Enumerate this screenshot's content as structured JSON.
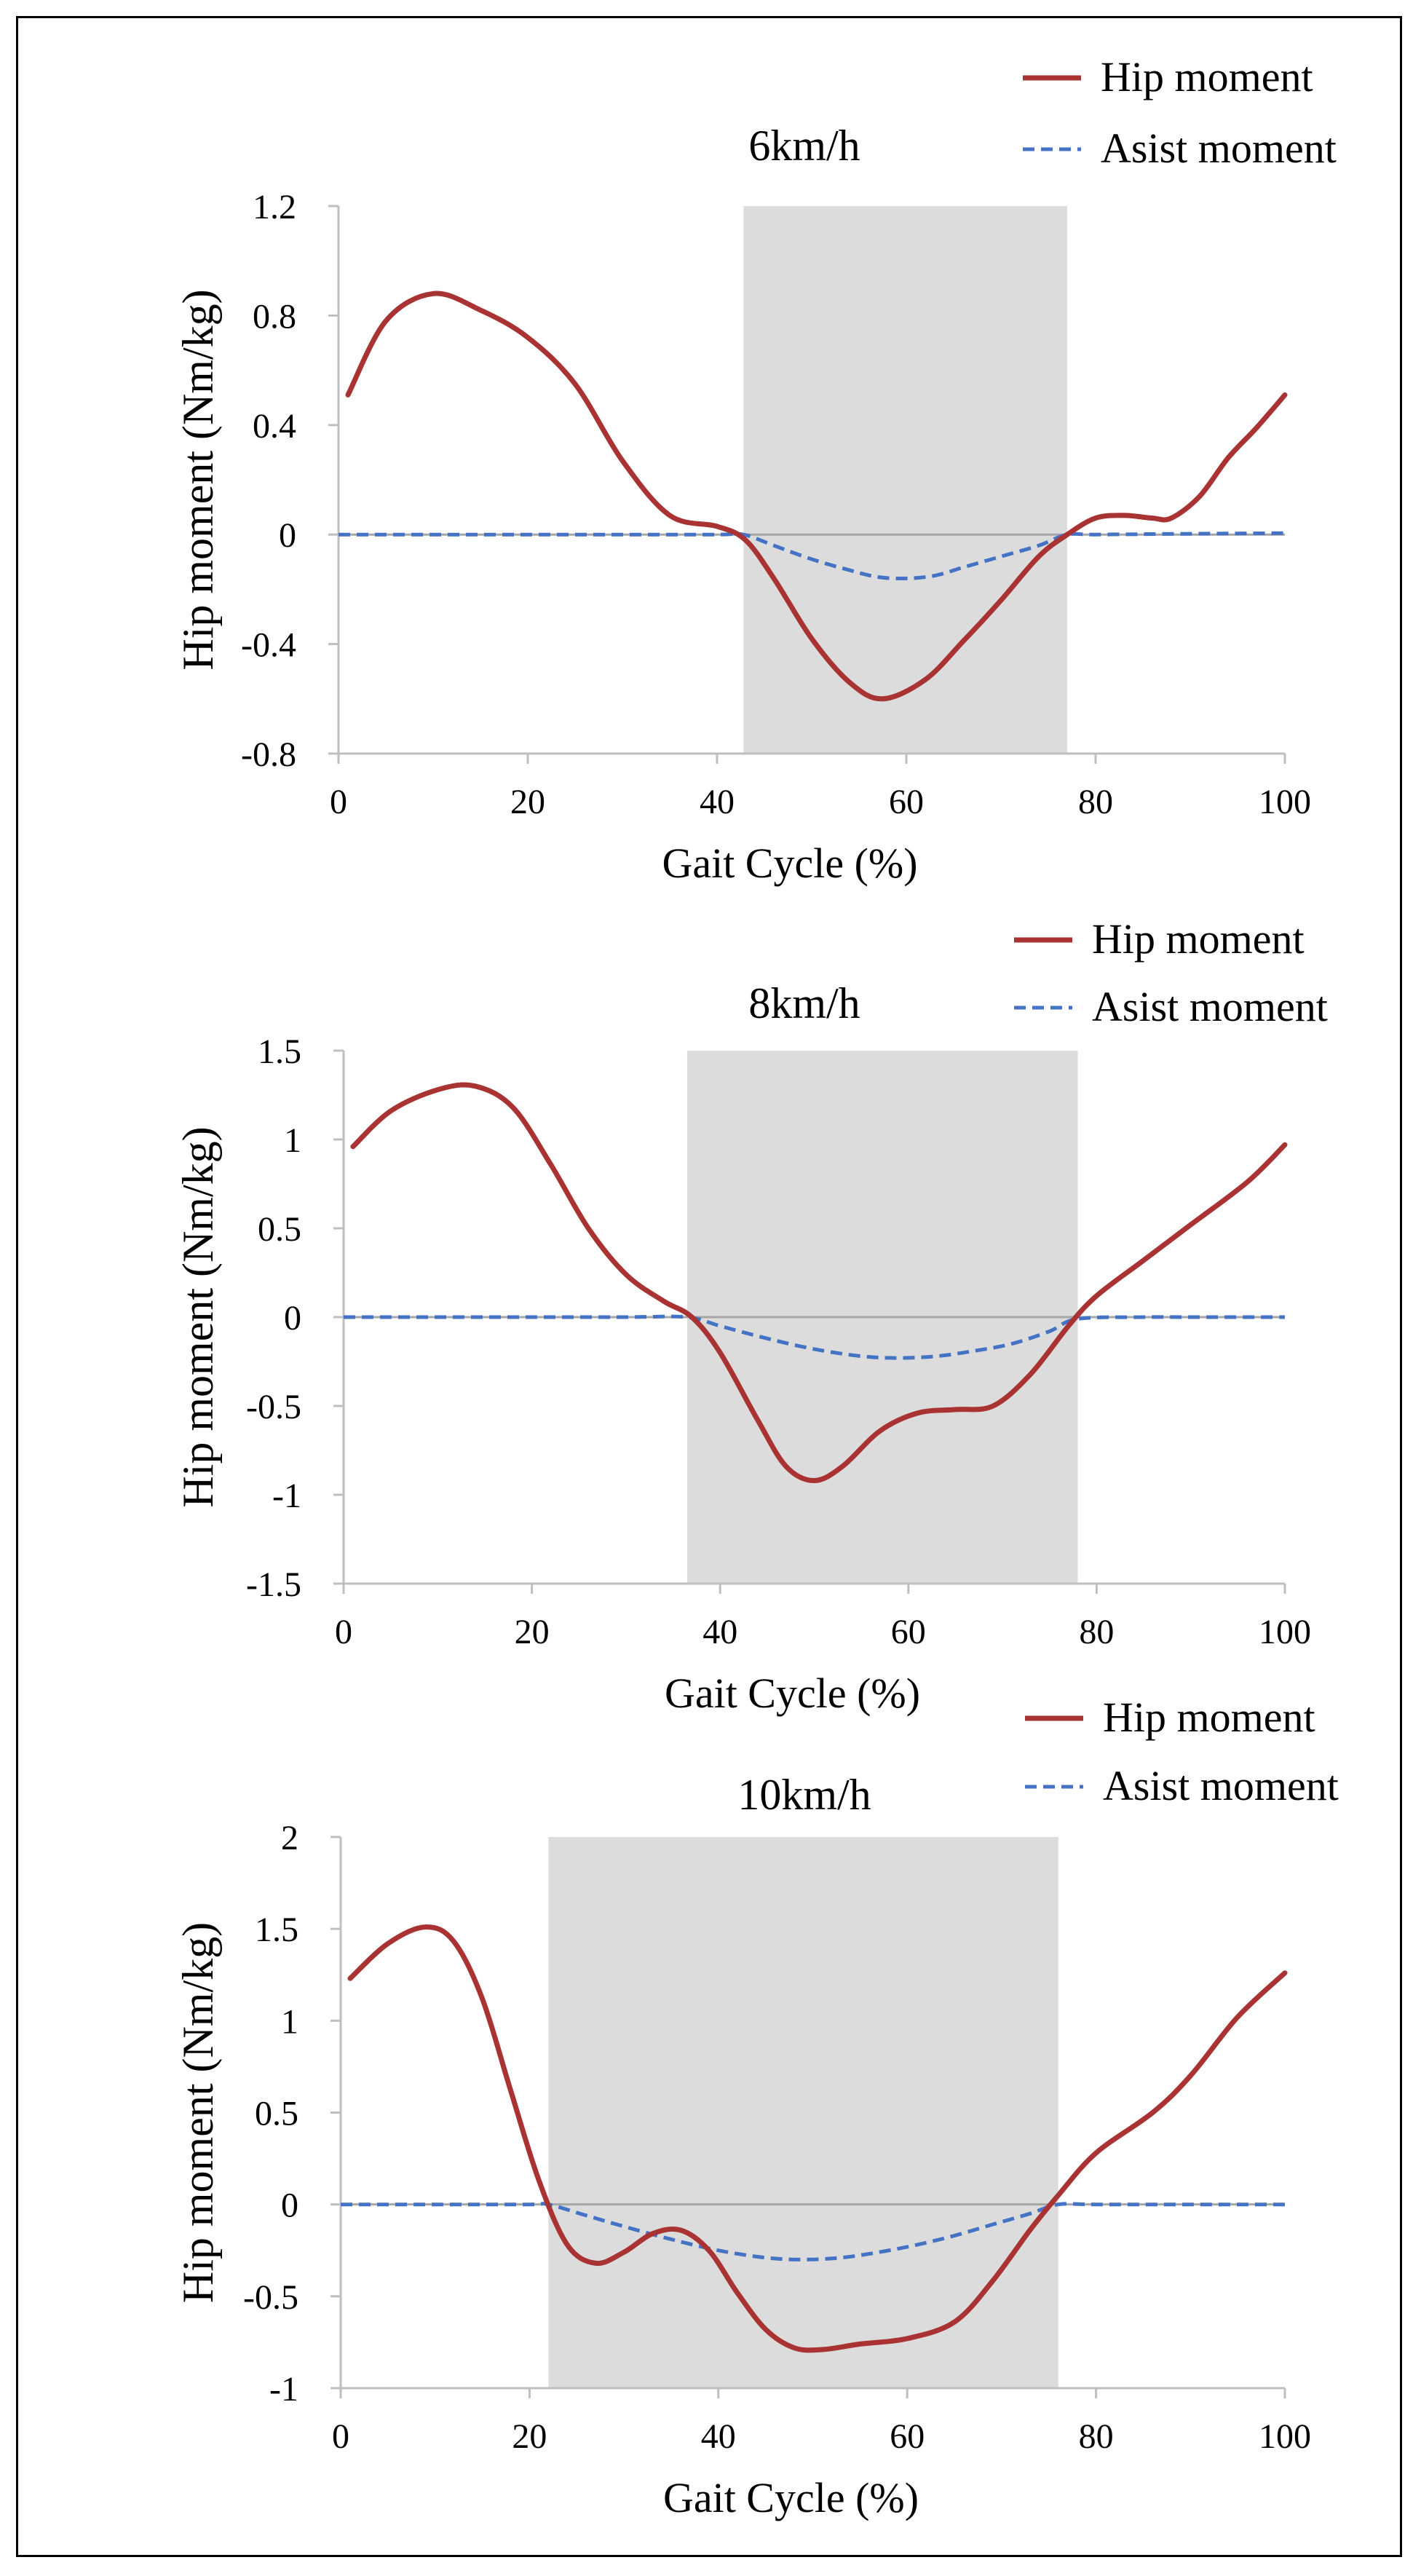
{
  "chart_data": [
    {
      "type": "line",
      "title": "6km/h",
      "xlabel": "Gait Cycle (%)",
      "ylabel": "Hip moment (Nm/kg)",
      "xlim": [
        0,
        100
      ],
      "ylim": [
        -0.8,
        1.2
      ],
      "x_ticks": [
        0,
        20,
        40,
        60,
        80,
        100
      ],
      "x_tick_labels": [
        "0",
        "20",
        "40",
        "60",
        "80",
        "100"
      ],
      "y_ticks": [
        1.2,
        0.8,
        0.4,
        0,
        -0.4,
        -0.8
      ],
      "y_tick_labels": [
        "1.2",
        "0.8",
        "0.4",
        "0",
        "-0.4",
        "-0.8"
      ],
      "shaded_region": [
        42.8,
        77
      ],
      "legend": [
        "Hip moment",
        "Asist moment"
      ],
      "series": [
        {
          "name": "Hip moment",
          "color": "#a93232",
          "style": "solid",
          "x": [
            1,
            5,
            10,
            15,
            20,
            25,
            30,
            35,
            40,
            43,
            46,
            50,
            54,
            57.5,
            62,
            66,
            70,
            74,
            77,
            80,
            83,
            86,
            88,
            91,
            94,
            97,
            100
          ],
          "y": [
            0.51,
            0.78,
            0.88,
            0.82,
            0.72,
            0.55,
            0.27,
            0.07,
            0.03,
            -0.02,
            -0.16,
            -0.38,
            -0.54,
            -0.6,
            -0.53,
            -0.39,
            -0.24,
            -0.08,
            0.0,
            0.06,
            0.07,
            0.06,
            0.06,
            0.14,
            0.28,
            0.39,
            0.51
          ]
        },
        {
          "name": "Asist moment",
          "color": "#4472c4",
          "style": "dashed",
          "x": [
            0,
            10,
            20,
            30,
            40,
            42.8,
            46,
            50,
            54,
            57,
            60,
            63,
            66,
            70,
            74,
            77,
            80,
            90,
            100
          ],
          "y": [
            0,
            0,
            0,
            0,
            0,
            0,
            -0.04,
            -0.09,
            -0.13,
            -0.155,
            -0.16,
            -0.15,
            -0.12,
            -0.08,
            -0.04,
            0,
            0,
            0.003,
            0.005
          ]
        }
      ]
    },
    {
      "type": "line",
      "title": "8km/h",
      "xlabel": "Gait Cycle (%)",
      "ylabel": "Hip moment (Nm/kg)",
      "xlim": [
        0,
        100
      ],
      "ylim": [
        -1.5,
        1.5
      ],
      "x_ticks": [
        0,
        20,
        40,
        60,
        80,
        100
      ],
      "x_tick_labels": [
        "0",
        "20",
        "40",
        "60",
        "80",
        "100"
      ],
      "y_ticks": [
        1.5,
        1,
        0.5,
        0,
        -0.5,
        -1,
        -1.5
      ],
      "y_tick_labels": [
        "1.5",
        "1",
        "0.5",
        "0",
        "-0.5",
        "-1",
        "-1.5"
      ],
      "shaded_region": [
        36.5,
        78
      ],
      "legend": [
        "Hip moment",
        "Asist moment"
      ],
      "series": [
        {
          "name": "Hip moment",
          "color": "#a93232",
          "style": "solid",
          "x": [
            1,
            5,
            10,
            14,
            18,
            22,
            26,
            30,
            34,
            37,
            40,
            44,
            47,
            50,
            53,
            57,
            61,
            65,
            69,
            73,
            77,
            80,
            85,
            90,
            96,
            100
          ],
          "y": [
            0.96,
            1.16,
            1.28,
            1.3,
            1.18,
            0.86,
            0.5,
            0.24,
            0.09,
            0.0,
            -0.2,
            -0.58,
            -0.84,
            -0.92,
            -0.84,
            -0.64,
            -0.54,
            -0.52,
            -0.5,
            -0.32,
            -0.05,
            0.12,
            0.32,
            0.52,
            0.76,
            0.97
          ]
        },
        {
          "name": "Asist moment",
          "color": "#4472c4",
          "style": "dashed",
          "x": [
            0,
            10,
            20,
            30,
            36.5,
            40,
            45,
            50,
            55,
            59,
            63,
            67,
            71,
            75,
            78,
            85,
            90,
            100
          ],
          "y": [
            0,
            0,
            0,
            0,
            0,
            -0.05,
            -0.12,
            -0.18,
            -0.22,
            -0.23,
            -0.22,
            -0.19,
            -0.15,
            -0.08,
            -0.01,
            0,
            0,
            0
          ]
        }
      ]
    },
    {
      "type": "line",
      "title": "10km/h",
      "xlabel": "Gait Cycle (%)",
      "ylabel": "Hip moment (Nm/kg)",
      "xlim": [
        0,
        100
      ],
      "ylim": [
        -1,
        2
      ],
      "x_ticks": [
        0,
        20,
        40,
        60,
        80,
        100
      ],
      "x_tick_labels": [
        "0",
        "20",
        "40",
        "60",
        "80",
        "100"
      ],
      "y_ticks": [
        2,
        1.5,
        1,
        0.5,
        0,
        -0.5,
        -1
      ],
      "y_tick_labels": [
        "2",
        "1.5",
        "1",
        "0.5",
        "0",
        "-0.5",
        "-1"
      ],
      "shaded_region": [
        22,
        76
      ],
      "legend": [
        "Hip moment",
        "Asist moment"
      ],
      "series": [
        {
          "name": "Hip moment",
          "color": "#a93232",
          "style": "solid",
          "x": [
            1,
            5,
            9,
            12,
            15,
            18,
            21,
            24,
            27,
            30,
            33,
            36,
            39,
            42,
            45,
            48,
            51,
            55,
            60,
            65,
            69,
            73,
            76,
            80,
            86,
            90,
            95,
            100
          ],
          "y": [
            1.23,
            1.42,
            1.51,
            1.43,
            1.12,
            0.62,
            0.13,
            -0.22,
            -0.32,
            -0.26,
            -0.16,
            -0.14,
            -0.25,
            -0.48,
            -0.68,
            -0.78,
            -0.79,
            -0.76,
            -0.73,
            -0.64,
            -0.42,
            -0.14,
            0.05,
            0.28,
            0.5,
            0.7,
            1.02,
            1.26
          ]
        },
        {
          "name": "Asist moment",
          "color": "#4472c4",
          "style": "dashed",
          "x": [
            0,
            10,
            20,
            22,
            26,
            30,
            35,
            40,
            45,
            49,
            53,
            57,
            61,
            65,
            69,
            73,
            76,
            80,
            90,
            100
          ],
          "y": [
            0,
            0,
            0,
            0,
            -0.06,
            -0.12,
            -0.19,
            -0.25,
            -0.29,
            -0.3,
            -0.29,
            -0.26,
            -0.22,
            -0.17,
            -0.11,
            -0.05,
            0,
            0,
            0,
            0
          ]
        }
      ]
    }
  ]
}
